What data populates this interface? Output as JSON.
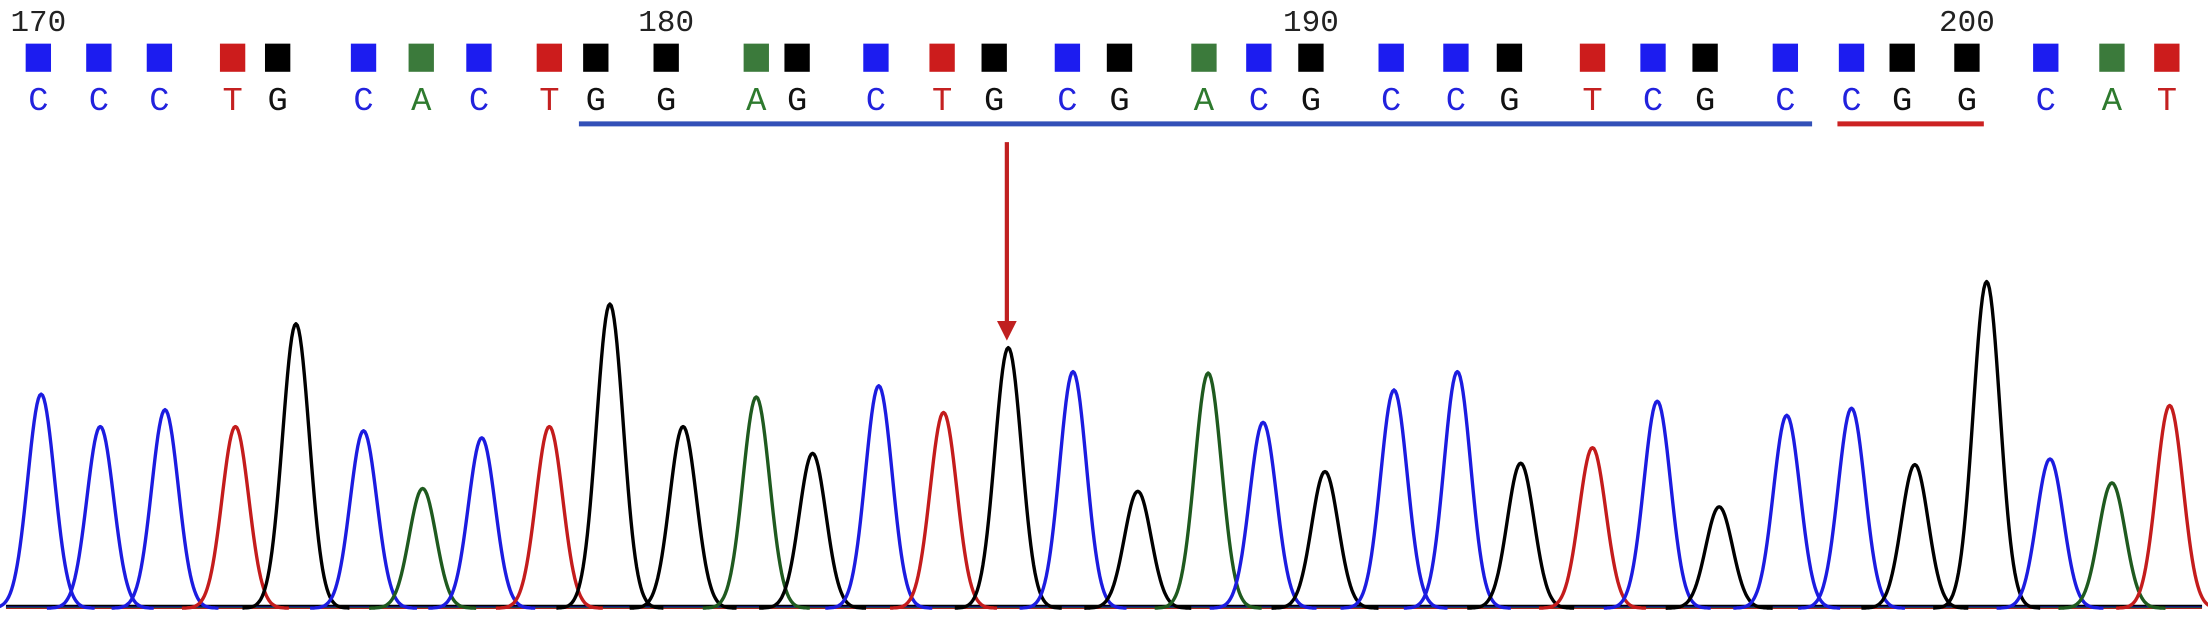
{
  "ruler": [
    "170",
    "180",
    "190",
    "200"
  ],
  "bases": [
    {
      "letter": "C",
      "height": 152
    },
    {
      "letter": "C",
      "height": 129
    },
    {
      "letter": "C",
      "height": 141
    },
    {
      "letter": "T",
      "height": 129
    },
    {
      "letter": "G",
      "height": 202
    },
    {
      "letter": "C",
      "height": 126
    },
    {
      "letter": "A",
      "height": 85
    },
    {
      "letter": "C",
      "height": 121
    },
    {
      "letter": "T",
      "height": 129
    },
    {
      "letter": "G",
      "height": 216
    },
    {
      "letter": "G",
      "height": 129
    },
    {
      "letter": "A",
      "height": 150
    },
    {
      "letter": "G",
      "height": 110
    },
    {
      "letter": "C",
      "height": 158
    },
    {
      "letter": "T",
      "height": 139
    },
    {
      "letter": "G",
      "height": 185
    },
    {
      "letter": "C",
      "height": 168
    },
    {
      "letter": "G",
      "height": 83
    },
    {
      "letter": "A",
      "height": 167
    },
    {
      "letter": "C",
      "height": 132
    },
    {
      "letter": "G",
      "height": 97
    },
    {
      "letter": "C",
      "height": 155
    },
    {
      "letter": "C",
      "height": 168
    },
    {
      "letter": "G",
      "height": 103
    },
    {
      "letter": "T",
      "height": 114
    },
    {
      "letter": "C",
      "height": 147
    },
    {
      "letter": "G",
      "height": 72
    },
    {
      "letter": "C",
      "height": 137
    },
    {
      "letter": "C",
      "height": 142
    },
    {
      "letter": "G",
      "height": 102
    },
    {
      "letter": "G",
      "height": 232
    },
    {
      "letter": "C",
      "height": 106
    },
    {
      "letter": "A",
      "height": 89
    },
    {
      "letter": "T",
      "height": 144
    }
  ]
}
